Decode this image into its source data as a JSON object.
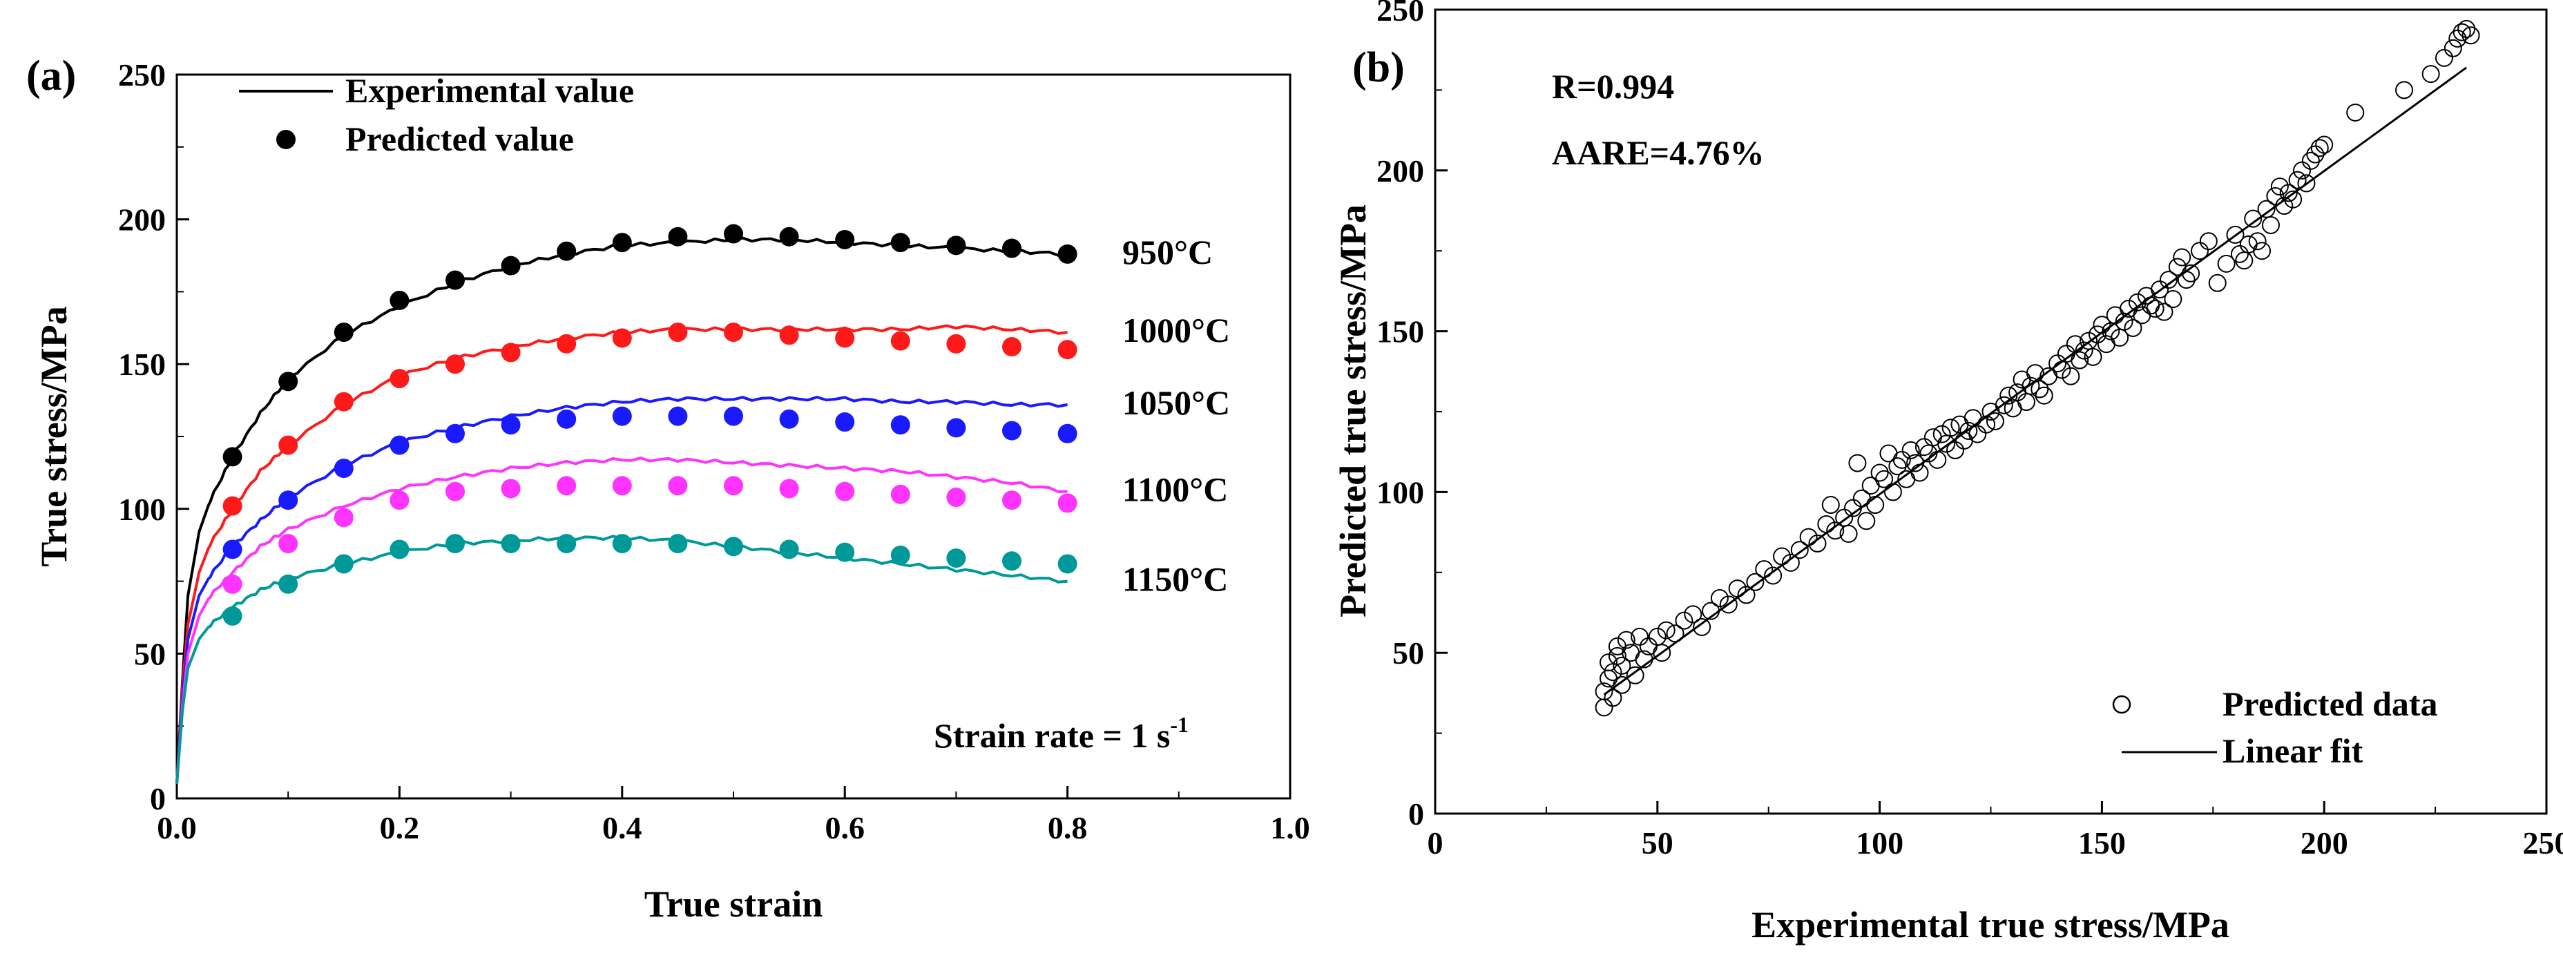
{
  "chart_data": [
    {
      "type": "line",
      "panel_label": "(a)",
      "xlabel": "True strain",
      "ylabel": "True stress/MPa",
      "xlim": [
        0,
        1.0
      ],
      "ylim": [
        0,
        250
      ],
      "xticks": [
        0,
        0.2,
        0.4,
        0.6,
        0.8,
        1.0
      ],
      "xtick_labels": [
        "0.0",
        "0.2",
        "0.4",
        "0.6",
        "0.8",
        "1.0"
      ],
      "yticks": [
        0,
        50,
        100,
        150,
        200,
        250
      ],
      "ytick_labels": [
        "0",
        "50",
        "100",
        "150",
        "200",
        "250"
      ],
      "legend": {
        "position": "top-left",
        "entries": [
          {
            "label": "Experimental value",
            "marker": "line"
          },
          {
            "label": "Predicted value",
            "marker": "filled-circle"
          }
        ]
      },
      "annotation": {
        "text": "Strain rate = 1 s",
        "superscript": "-1"
      },
      "series": [
        {
          "name": "950°C",
          "color": "#000000",
          "experimental": {
            "x": [
              0,
              0.005,
              0.01,
              0.02,
              0.03,
              0.05,
              0.075,
              0.1,
              0.15,
              0.2,
              0.25,
              0.3,
              0.35,
              0.4,
              0.45,
              0.5,
              0.55,
              0.6,
              0.65,
              0.7,
              0.75,
              0.8
            ],
            "y": [
              5,
              40,
              70,
              92,
              103,
              118,
              133,
              145,
              160,
              170,
              178,
              184,
              188,
              191,
              192,
              193,
              193,
              192,
              191,
              190,
              189,
              188
            ]
          },
          "predicted": {
            "x": [
              0.05,
              0.1,
              0.15,
              0.2,
              0.25,
              0.3,
              0.35,
              0.4,
              0.45,
              0.5,
              0.55,
              0.6,
              0.65,
              0.7,
              0.75,
              0.8
            ],
            "y": [
              118,
              144,
              161,
              172,
              179,
              184,
              189,
              192,
              194,
              195,
              194,
              193,
              192,
              191,
              190,
              188
            ]
          }
        },
        {
          "name": "1000°C",
          "color": "#ff1a1a",
          "experimental": {
            "x": [
              0,
              0.005,
              0.01,
              0.02,
              0.03,
              0.05,
              0.075,
              0.1,
              0.15,
              0.2,
              0.25,
              0.3,
              0.35,
              0.4,
              0.45,
              0.5,
              0.55,
              0.6,
              0.65,
              0.7,
              0.75,
              0.8
            ],
            "y": [
              5,
              38,
              60,
              78,
              88,
              100,
              113,
              122,
              136,
              146,
              152,
              156,
              159,
              161,
              162,
              162,
              162,
              162,
              162,
              163,
              162,
              161
            ]
          },
          "predicted": {
            "x": [
              0.05,
              0.1,
              0.15,
              0.2,
              0.25,
              0.3,
              0.35,
              0.4,
              0.45,
              0.5,
              0.55,
              0.6,
              0.65,
              0.7,
              0.75,
              0.8
            ],
            "y": [
              101,
              122,
              137,
              145,
              150,
              154,
              157,
              159,
              161,
              161,
              160,
              159,
              158,
              157,
              156,
              155
            ]
          }
        },
        {
          "name": "1050°C",
          "color": "#1a1aff",
          "experimental": {
            "x": [
              0,
              0.005,
              0.01,
              0.02,
              0.03,
              0.05,
              0.075,
              0.1,
              0.15,
              0.2,
              0.25,
              0.3,
              0.35,
              0.4,
              0.45,
              0.5,
              0.55,
              0.6,
              0.65,
              0.7,
              0.75,
              0.8
            ],
            "y": [
              5,
              35,
              55,
              70,
              77,
              87,
              96,
              104,
              115,
              123,
              128,
              132,
              135,
              137,
              138,
              138,
              138,
              138,
              137,
              137,
              136,
              136
            ]
          },
          "predicted": {
            "x": [
              0.05,
              0.1,
              0.15,
              0.2,
              0.25,
              0.3,
              0.35,
              0.4,
              0.45,
              0.5,
              0.55,
              0.6,
              0.65,
              0.7,
              0.75,
              0.8
            ],
            "y": [
              86,
              103,
              114,
              122,
              126,
              129,
              131,
              132,
              132,
              132,
              131,
              130,
              129,
              128,
              127,
              126
            ]
          }
        },
        {
          "name": "1100°C",
          "color": "#ff33ff",
          "experimental": {
            "x": [
              0,
              0.005,
              0.01,
              0.02,
              0.03,
              0.05,
              0.075,
              0.1,
              0.15,
              0.2,
              0.25,
              0.3,
              0.35,
              0.4,
              0.45,
              0.5,
              0.55,
              0.6,
              0.65,
              0.7,
              0.75,
              0.8
            ],
            "y": [
              5,
              32,
              50,
              63,
              70,
              78,
              87,
              93,
              101,
              107,
              111,
              114,
              116,
              117,
              117,
              116,
              115,
              114,
              113,
              111,
              109,
              106
            ]
          },
          "predicted": {
            "x": [
              0.05,
              0.1,
              0.15,
              0.2,
              0.25,
              0.3,
              0.35,
              0.4,
              0.45,
              0.5,
              0.55,
              0.6,
              0.65,
              0.7,
              0.75,
              0.8
            ],
            "y": [
              74,
              88,
              97,
              103,
              106,
              107,
              108,
              108,
              108,
              108,
              107,
              106,
              105,
              104,
              103,
              102
            ]
          }
        },
        {
          "name": "1150°C",
          "color": "#009999",
          "experimental": {
            "x": [
              0,
              0.005,
              0.01,
              0.02,
              0.03,
              0.05,
              0.075,
              0.1,
              0.15,
              0.2,
              0.25,
              0.3,
              0.35,
              0.4,
              0.45,
              0.5,
              0.55,
              0.6,
              0.65,
              0.7,
              0.75,
              0.8
            ],
            "y": [
              5,
              30,
              45,
              55,
              60,
              66,
              72,
              76,
              81,
              85,
              88,
              89,
              90,
              90,
              89,
              87,
              85,
              83,
              81,
              79,
              77,
              75
            ]
          },
          "predicted": {
            "x": [
              0.05,
              0.1,
              0.15,
              0.2,
              0.25,
              0.3,
              0.35,
              0.4,
              0.45,
              0.5,
              0.55,
              0.6,
              0.65,
              0.7,
              0.75,
              0.8
            ],
            "y": [
              63,
              74,
              81,
              86,
              88,
              88,
              88,
              88,
              88,
              87,
              86,
              85,
              84,
              83,
              82,
              81
            ]
          }
        }
      ]
    },
    {
      "type": "scatter",
      "panel_label": "(b)",
      "xlabel": "Experimental true stress/MPa",
      "ylabel": "Predicted true stress/MPa",
      "xlim": [
        0,
        250
      ],
      "ylim": [
        0,
        250
      ],
      "xticks": [
        0,
        50,
        100,
        150,
        200,
        250
      ],
      "xtick_labels": [
        "0",
        "50",
        "100",
        "150",
        "200",
        "250"
      ],
      "yticks": [
        0,
        50,
        100,
        150,
        200,
        250
      ],
      "ytick_labels": [
        "0",
        "50",
        "100",
        "150",
        "200",
        "250"
      ],
      "stats": [
        "R=0.994",
        "AARE=4.76%"
      ],
      "legend": {
        "position": "bottom-right",
        "entries": [
          {
            "label": "Predicted data",
            "marker": "open-circle"
          },
          {
            "label": "Linear fit",
            "marker": "line"
          }
        ]
      },
      "linear_fit": {
        "x": [
          38,
          232
        ],
        "y": [
          37,
          232
        ]
      },
      "points": [
        [
          38,
          33
        ],
        [
          38,
          38
        ],
        [
          39,
          42
        ],
        [
          39,
          47
        ],
        [
          40,
          36
        ],
        [
          40,
          44
        ],
        [
          41,
          49
        ],
        [
          41,
          52
        ],
        [
          42,
          40
        ],
        [
          42,
          46
        ],
        [
          43,
          54
        ],
        [
          44,
          50
        ],
        [
          45,
          43
        ],
        [
          46,
          55
        ],
        [
          47,
          48
        ],
        [
          48,
          52
        ],
        [
          50,
          55
        ],
        [
          51,
          50
        ],
        [
          52,
          57
        ],
        [
          54,
          56
        ],
        [
          56,
          60
        ],
        [
          58,
          62
        ],
        [
          60,
          58
        ],
        [
          62,
          63
        ],
        [
          64,
          67
        ],
        [
          66,
          65
        ],
        [
          68,
          70
        ],
        [
          70,
          68
        ],
        [
          72,
          72
        ],
        [
          74,
          76
        ],
        [
          76,
          74
        ],
        [
          78,
          80
        ],
        [
          80,
          78
        ],
        [
          82,
          82
        ],
        [
          84,
          86
        ],
        [
          86,
          84
        ],
        [
          88,
          90
        ],
        [
          89,
          96
        ],
        [
          90,
          88
        ],
        [
          92,
          92
        ],
        [
          93,
          87
        ],
        [
          94,
          95
        ],
        [
          95,
          109
        ],
        [
          96,
          98
        ],
        [
          97,
          91
        ],
        [
          98,
          102
        ],
        [
          99,
          96
        ],
        [
          100,
          106
        ],
        [
          101,
          104
        ],
        [
          102,
          112
        ],
        [
          103,
          100
        ],
        [
          104,
          108
        ],
        [
          105,
          110
        ],
        [
          106,
          104
        ],
        [
          107,
          113
        ],
        [
          108,
          109
        ],
        [
          109,
          106
        ],
        [
          110,
          114
        ],
        [
          111,
          112
        ],
        [
          112,
          117
        ],
        [
          113,
          110
        ],
        [
          114,
          118
        ],
        [
          115,
          115
        ],
        [
          116,
          120
        ],
        [
          117,
          113
        ],
        [
          118,
          121
        ],
        [
          119,
          116
        ],
        [
          120,
          119
        ],
        [
          121,
          123
        ],
        [
          122,
          118
        ],
        [
          124,
          121
        ],
        [
          125,
          125
        ],
        [
          126,
          122
        ],
        [
          128,
          127
        ],
        [
          129,
          130
        ],
        [
          130,
          126
        ],
        [
          131,
          131
        ],
        [
          132,
          135
        ],
        [
          133,
          128
        ],
        [
          134,
          133
        ],
        [
          135,
          137
        ],
        [
          136,
          132
        ],
        [
          137,
          130
        ],
        [
          138,
          136
        ],
        [
          140,
          140
        ],
        [
          141,
          138
        ],
        [
          142,
          143
        ],
        [
          143,
          136
        ],
        [
          144,
          146
        ],
        [
          145,
          141
        ],
        [
          146,
          144
        ],
        [
          147,
          147
        ],
        [
          148,
          142
        ],
        [
          149,
          149
        ],
        [
          150,
          152
        ],
        [
          151,
          146
        ],
        [
          152,
          150
        ],
        [
          153,
          155
        ],
        [
          154,
          148
        ],
        [
          155,
          153
        ],
        [
          156,
          157
        ],
        [
          157,
          151
        ],
        [
          158,
          159
        ],
        [
          159,
          155
        ],
        [
          160,
          161
        ],
        [
          161,
          158
        ],
        [
          162,
          157
        ],
        [
          163,
          163
        ],
        [
          164,
          156
        ],
        [
          165,
          166
        ],
        [
          166,
          160
        ],
        [
          167,
          170
        ],
        [
          168,
          173
        ],
        [
          169,
          166
        ],
        [
          170,
          168
        ],
        [
          172,
          175
        ],
        [
          174,
          178
        ],
        [
          176,
          165
        ],
        [
          178,
          171
        ],
        [
          180,
          180
        ],
        [
          181,
          174
        ],
        [
          182,
          172
        ],
        [
          183,
          177
        ],
        [
          184,
          185
        ],
        [
          185,
          178
        ],
        [
          186,
          175
        ],
        [
          187,
          188
        ],
        [
          188,
          183
        ],
        [
          189,
          192
        ],
        [
          190,
          195
        ],
        [
          191,
          189
        ],
        [
          192,
          193
        ],
        [
          193,
          191
        ],
        [
          194,
          197
        ],
        [
          195,
          200
        ],
        [
          196,
          196
        ],
        [
          197,
          203
        ],
        [
          198,
          205
        ],
        [
          199,
          207
        ],
        [
          200,
          208
        ],
        [
          207,
          218
        ],
        [
          218,
          225
        ],
        [
          224,
          230
        ],
        [
          227,
          235
        ],
        [
          229,
          238
        ],
        [
          230,
          241
        ],
        [
          231,
          243
        ],
        [
          232,
          244
        ],
        [
          233,
          242
        ]
      ]
    }
  ]
}
